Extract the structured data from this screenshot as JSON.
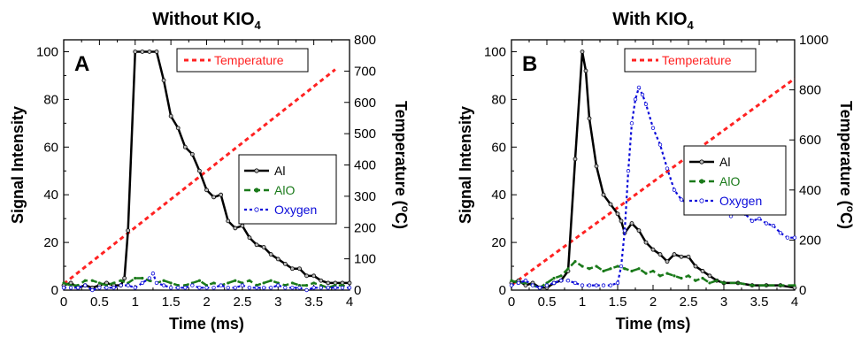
{
  "chart_data": [
    {
      "type": "line",
      "title": "Without KIO",
      "title_subscript": "4",
      "panel_label": "A",
      "xlabel": "Time (ms)",
      "ylabel": "Signal Intensity",
      "y2label": "Temperature (",
      "y2label_sup": "o",
      "y2label_end": "C)",
      "xlim": [
        0,
        4
      ],
      "ylim": [
        0,
        105
      ],
      "y2lim": [
        0,
        800
      ],
      "xticks": [
        "0",
        "0.5",
        "1",
        "1.5",
        "2",
        "2.5",
        "3",
        "3.5",
        "4"
      ],
      "yticks": [
        "0",
        "20",
        "40",
        "60",
        "80",
        "100"
      ],
      "y2ticks": [
        "0",
        "100",
        "200",
        "300",
        "400",
        "500",
        "600",
        "700",
        "800"
      ],
      "legend_top": "Temperature",
      "legend_main": [
        "Al",
        "AlO",
        "Oxygen"
      ],
      "series": [
        {
          "name": "Al",
          "color": "#000000",
          "x": [
            0,
            0.1,
            0.2,
            0.3,
            0.4,
            0.5,
            0.6,
            0.7,
            0.8,
            0.85,
            0.9,
            1.0,
            1.1,
            1.2,
            1.3,
            1.4,
            1.5,
            1.6,
            1.7,
            1.8,
            1.9,
            2.0,
            2.1,
            2.2,
            2.3,
            2.4,
            2.5,
            2.6,
            2.7,
            2.8,
            2.9,
            3.0,
            3.1,
            3.2,
            3.3,
            3.4,
            3.5,
            3.6,
            3.7,
            3.8,
            3.9,
            4.0
          ],
          "values": [
            2,
            3,
            1,
            2,
            1,
            2,
            3,
            2,
            2,
            5,
            25,
            100,
            100,
            100,
            100,
            88,
            73,
            68,
            60,
            57,
            50,
            42,
            39,
            40,
            29,
            26,
            27,
            22,
            19,
            18,
            15,
            13,
            11,
            9,
            9,
            6,
            6,
            4,
            3,
            3,
            3,
            3
          ]
        },
        {
          "name": "AlO",
          "color": "#1a7a1a",
          "x": [
            0,
            0.1,
            0.2,
            0.3,
            0.4,
            0.5,
            0.6,
            0.7,
            0.8,
            0.9,
            1.0,
            1.1,
            1.2,
            1.3,
            1.4,
            1.5,
            1.6,
            1.7,
            1.8,
            1.9,
            2.0,
            2.1,
            2.2,
            2.3,
            2.4,
            2.5,
            2.6,
            2.7,
            2.8,
            2.9,
            3.0,
            3.1,
            3.2,
            3.3,
            3.4,
            3.5,
            3.6,
            3.7,
            3.8,
            3.9,
            4.0
          ],
          "values": [
            3,
            2,
            2,
            4,
            4,
            3,
            2,
            3,
            4,
            3,
            5,
            5,
            4,
            3,
            4,
            3,
            2,
            2,
            3,
            4,
            2,
            3,
            2,
            3,
            4,
            3,
            4,
            2,
            3,
            4,
            3,
            2,
            3,
            2,
            2,
            3,
            2,
            1,
            2,
            2,
            1
          ]
        },
        {
          "name": "Oxygen",
          "color": "#0b0bd9",
          "x": [
            0,
            0.1,
            0.2,
            0.3,
            0.4,
            0.5,
            0.6,
            0.7,
            0.8,
            0.9,
            1.0,
            1.1,
            1.2,
            1.25,
            1.3,
            1.4,
            1.5,
            1.6,
            1.7,
            1.8,
            1.9,
            2.0,
            2.1,
            2.2,
            2.3,
            2.4,
            2.5,
            2.6,
            2.7,
            2.8,
            2.9,
            3.0,
            3.1,
            3.2,
            3.3,
            3.4,
            3.5,
            3.6,
            3.7,
            3.8,
            3.9,
            4.0
          ],
          "values": [
            1,
            1,
            1,
            2,
            0,
            1,
            1,
            1,
            2,
            2,
            1,
            3,
            5,
            7,
            3,
            2,
            1,
            1,
            1,
            2,
            1,
            1,
            1,
            2,
            1,
            1,
            2,
            1,
            1,
            1,
            1,
            2,
            1,
            1,
            1,
            0,
            1,
            1,
            1,
            1,
            1,
            1
          ]
        }
      ],
      "temperature": {
        "name": "Temperature",
        "color": "#ff2222",
        "x": [
          0,
          3.8
        ],
        "values": [
          20,
          705
        ]
      },
      "grid": false
    },
    {
      "type": "line",
      "title": "With KIO",
      "title_subscript": "4",
      "panel_label": "B",
      "xlabel": "Time (ms)",
      "ylabel": "Signal Intensity",
      "y2label": "Temperature (",
      "y2label_sup": "o",
      "y2label_end": "C)",
      "xlim": [
        0,
        4
      ],
      "ylim": [
        0,
        105
      ],
      "y2lim": [
        0,
        1000
      ],
      "xticks": [
        "0",
        "0.5",
        "1",
        "1.5",
        "2",
        "2.5",
        "3",
        "3.5",
        "4"
      ],
      "yticks": [
        "0",
        "20",
        "40",
        "60",
        "80",
        "100"
      ],
      "y2ticks": [
        "0",
        "200",
        "400",
        "600",
        "800",
        "1000"
      ],
      "legend_top": "Temperature",
      "legend_main": [
        "Al",
        "AlO",
        "Oxygen"
      ],
      "series": [
        {
          "name": "Al",
          "color": "#000000",
          "x": [
            0,
            0.1,
            0.2,
            0.3,
            0.4,
            0.5,
            0.6,
            0.7,
            0.8,
            0.9,
            1.0,
            1.05,
            1.1,
            1.2,
            1.3,
            1.4,
            1.5,
            1.55,
            1.6,
            1.7,
            1.8,
            1.9,
            2.0,
            2.1,
            2.2,
            2.3,
            2.4,
            2.5,
            2.6,
            2.7,
            2.8,
            2.9,
            3.0,
            3.2,
            3.4,
            3.6,
            3.8,
            4.0
          ],
          "values": [
            3,
            4,
            2,
            3,
            1,
            1,
            3,
            4,
            8,
            55,
            100,
            92,
            72,
            52,
            40,
            36,
            32,
            29,
            24,
            28,
            25,
            20,
            17,
            15,
            12,
            15,
            14,
            14,
            10,
            8,
            6,
            4,
            3,
            3,
            2,
            2,
            2,
            1
          ]
        },
        {
          "name": "AlO",
          "color": "#1a7a1a",
          "x": [
            0,
            0.1,
            0.2,
            0.3,
            0.4,
            0.5,
            0.6,
            0.7,
            0.8,
            0.9,
            1.0,
            1.1,
            1.2,
            1.3,
            1.4,
            1.5,
            1.6,
            1.7,
            1.8,
            1.9,
            2.0,
            2.1,
            2.2,
            2.3,
            2.4,
            2.5,
            2.6,
            2.7,
            2.8,
            2.9,
            3.0,
            3.2,
            3.4,
            3.6,
            3.8,
            4.0
          ],
          "values": [
            4,
            3,
            3,
            2,
            1,
            3,
            5,
            6,
            9,
            12,
            10,
            9,
            10,
            8,
            9,
            10,
            9,
            8,
            9,
            7,
            8,
            6,
            7,
            6,
            5,
            6,
            4,
            5,
            3,
            4,
            3,
            3,
            2,
            2,
            2,
            2
          ]
        },
        {
          "name": "Oxygen",
          "color": "#0b0bd9",
          "x": [
            0,
            0.1,
            0.2,
            0.3,
            0.4,
            0.5,
            0.6,
            0.7,
            0.8,
            0.9,
            1.0,
            1.1,
            1.2,
            1.3,
            1.4,
            1.5,
            1.55,
            1.6,
            1.65,
            1.7,
            1.75,
            1.8,
            1.85,
            1.9,
            2.0,
            2.1,
            2.2,
            2.3,
            2.4,
            2.5,
            2.6,
            2.7,
            2.8,
            2.9,
            3.0,
            3.1,
            3.2,
            3.3,
            3.4,
            3.5,
            3.6,
            3.7,
            3.8,
            3.9,
            4.0
          ],
          "values": [
            2,
            3,
            4,
            2,
            1,
            2,
            3,
            4,
            4,
            3,
            2,
            2,
            2,
            2,
            2,
            3,
            10,
            25,
            50,
            70,
            80,
            85,
            82,
            78,
            68,
            61,
            51,
            42,
            38,
            36,
            35,
            35,
            33,
            34,
            33,
            31,
            34,
            32,
            29,
            30,
            28,
            27,
            24,
            22,
            22
          ]
        }
      ],
      "temperature": {
        "name": "Temperature",
        "color": "#ff2222",
        "x": [
          0,
          4.0
        ],
        "values": [
          20,
          845
        ]
      },
      "grid": false
    }
  ]
}
